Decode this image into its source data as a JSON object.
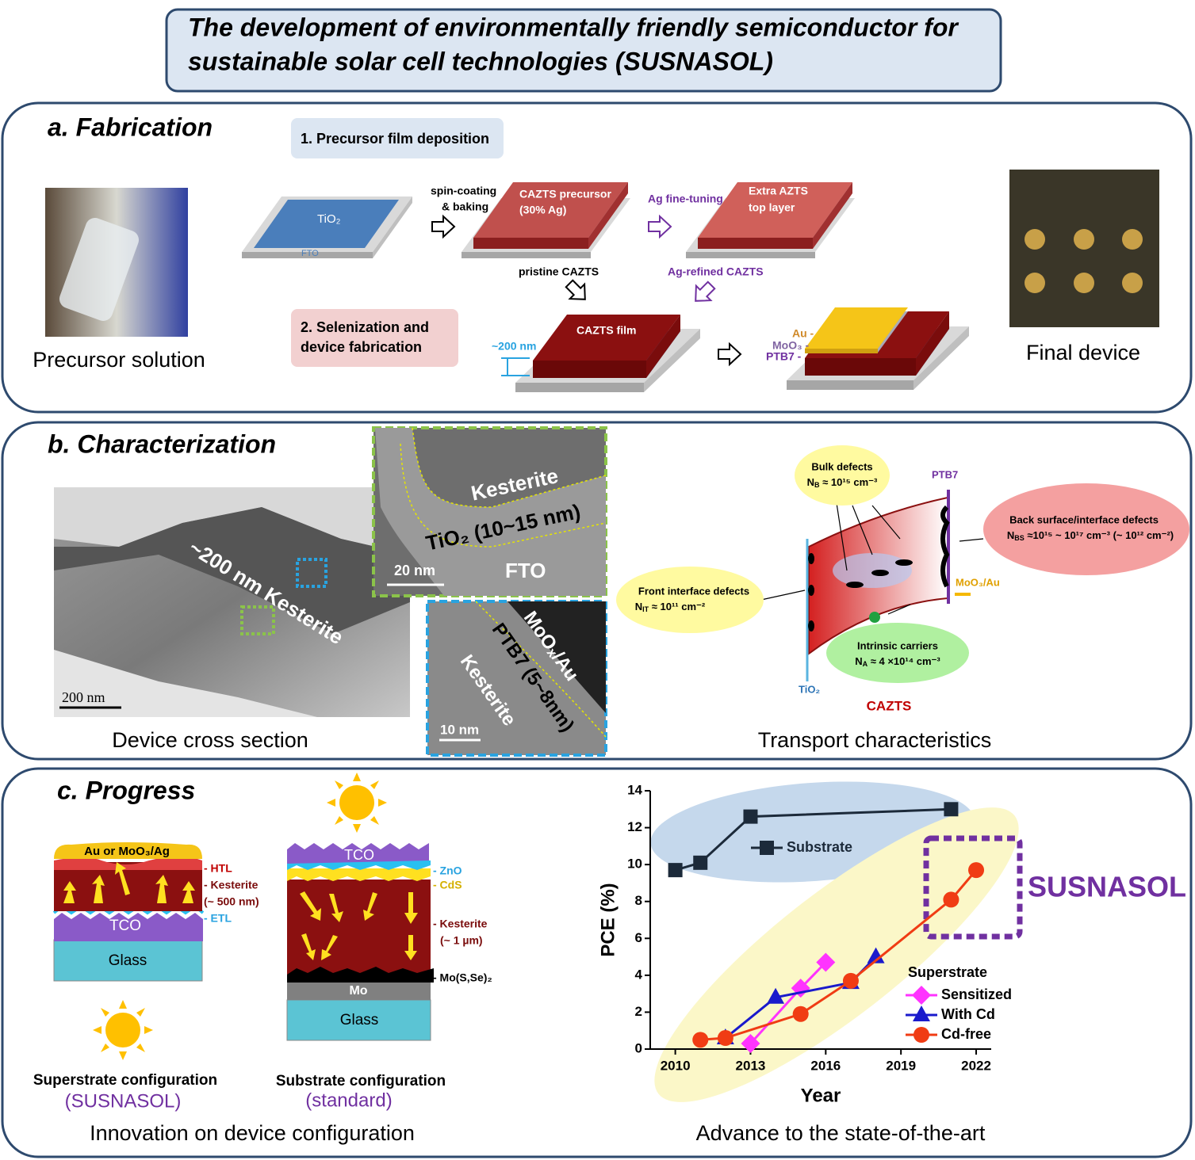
{
  "header": {
    "title": [
      "The development of environmentally friendly semiconductor  for",
      "sustainable solar cell technologies (SUSNASOL)"
    ]
  },
  "fabrication": {
    "heading": "a. Fabrication",
    "step1": "1. Precursor film deposition",
    "step2": [
      "2. Selenization and",
      "device fabrication"
    ],
    "photo_caption": "Precursor solution",
    "device_caption": "Final device",
    "tio2": "TiO₂",
    "fto": "FTO",
    "spin_coating": [
      "spin-coating",
      "& baking"
    ],
    "precursor": [
      "CAZTS precursor",
      "(30% Ag)"
    ],
    "ag_tuning": "Ag fine-tuning",
    "extra_layer": [
      "Extra AZTS",
      "top layer"
    ],
    "pristine": "pristine CAZTS",
    "ag_refined": "Ag-refined CAZTS",
    "film": "CAZTS film",
    "thickness": "~200 nm",
    "au": "Au -",
    "moo3": "MoO₃ -",
    "ptb7": "PTB7 -"
  },
  "characterization": {
    "heading": "b. Characterization",
    "tem_label": "~200 nm Kesterite",
    "tem_scale": "200 nm",
    "cross_section_caption": "Device cross section",
    "inset_front": {
      "kesterite": "Kesterite",
      "tio2": "TiO₂ (10~15 nm)",
      "fto": "FTO",
      "scale": "20 nm"
    },
    "inset_back": {
      "moox": "MoOₓ/Au",
      "ptb7": "PTB7 (5~8nm)",
      "kesterite": "Kesterite",
      "scale": "10 nm"
    },
    "transport": {
      "bulk": {
        "title": "Bulk defects",
        "symbol": "N",
        "sub": "B",
        "value": " ≈ 10¹⁵ cm⁻³"
      },
      "back": {
        "title": "Back surface/interface defects",
        "symbol": "N",
        "sub": "BS",
        "value": " ≈10¹⁵ ~ 10¹⁷ cm⁻³ (~ 10¹² cm⁻²)"
      },
      "front": {
        "title": "Front interface defects",
        "symbol": "N",
        "sub": "IT",
        "value": " ≈ 10¹¹ cm⁻²"
      },
      "intrinsic": {
        "title": "Intrinsic carriers",
        "symbol": "N",
        "sub": "A",
        "value": " ≈ 4 ×10¹⁴ cm⁻³"
      },
      "ptb7": "PTB7",
      "moo3_au": "MoO₃/Au",
      "tio2": "TiO₂",
      "cazts": "CAZTS"
    },
    "transport_caption": "Transport characteristics"
  },
  "progress": {
    "heading": "c. Progress",
    "superstrate": {
      "top": "Au or MoO₃/Ag",
      "htl": "- HTL",
      "kesterite": "- Kesterite",
      "thickness": "(~ 500 nm)",
      "tco": "TCO",
      "etl": "- ETL",
      "glass": "Glass",
      "name": "Superstrate configuration",
      "tag": "(SUSNASOL)"
    },
    "substrate": {
      "tco": "TCO",
      "zno": "- ZnO",
      "cds": "- CdS",
      "kesterite": "- Kesterite",
      "thickness": "(~ 1 µm)",
      "mosse": "- Mo(S,Se)₂",
      "mo": "Mo",
      "glass": "Glass",
      "name": "Substrate configuration",
      "tag": "(standard)"
    },
    "config_caption": "Innovation on device configuration",
    "chart_caption": "Advance to the state-of-the-art"
  },
  "chart_data": {
    "type": "line",
    "xlabel": "Year",
    "ylabel": "PCE (%)",
    "xlim": [
      2009,
      2022.6
    ],
    "ylim": [
      0,
      14
    ],
    "xticks": [
      2010,
      2013,
      2016,
      2019,
      2022
    ],
    "yticks": [
      0,
      2,
      4,
      6,
      8,
      10,
      12,
      14
    ],
    "legend_title": "Superstrate",
    "annotation": "SUSNASOL",
    "series": [
      {
        "name": "Substrate",
        "color": "#1c2a3a",
        "marker": "square",
        "x": [
          2010,
          2011,
          2013,
          2021
        ],
        "values": [
          9.7,
          10.1,
          12.6,
          13.0
        ]
      },
      {
        "name": "Sensitized",
        "color": "#ff33ff",
        "marker": "diamond",
        "x": [
          2013,
          2015,
          2016
        ],
        "values": [
          0.3,
          3.3,
          4.7
        ]
      },
      {
        "name": "With Cd",
        "color": "#1a1acc",
        "marker": "triangle",
        "x": [
          2012,
          2014,
          2017,
          2018
        ],
        "values": [
          0.6,
          2.8,
          3.6,
          5.0
        ]
      },
      {
        "name": "Cd-free",
        "color": "#f03c14",
        "marker": "circle",
        "x": [
          2011,
          2012,
          2015,
          2017,
          2021,
          2022
        ],
        "values": [
          0.5,
          0.6,
          1.9,
          3.7,
          8.1,
          9.7
        ]
      }
    ]
  }
}
